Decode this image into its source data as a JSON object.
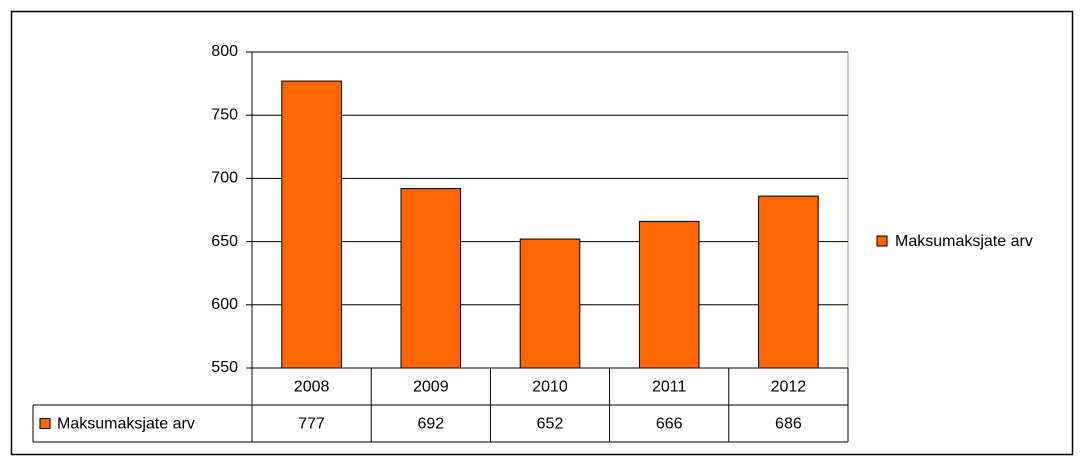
{
  "chart_data": {
    "type": "bar",
    "categories": [
      "2008",
      "2009",
      "2010",
      "2011",
      "2012"
    ],
    "series": [
      {
        "name": "Maksumaksjate arv",
        "color": "#ff6600",
        "values": [
          777,
          692,
          652,
          666,
          686
        ]
      }
    ],
    "ylim": [
      550,
      800
    ],
    "yticks": [
      550,
      600,
      650,
      700,
      750,
      800
    ],
    "grid": true,
    "legend": "right",
    "data_table": true
  }
}
